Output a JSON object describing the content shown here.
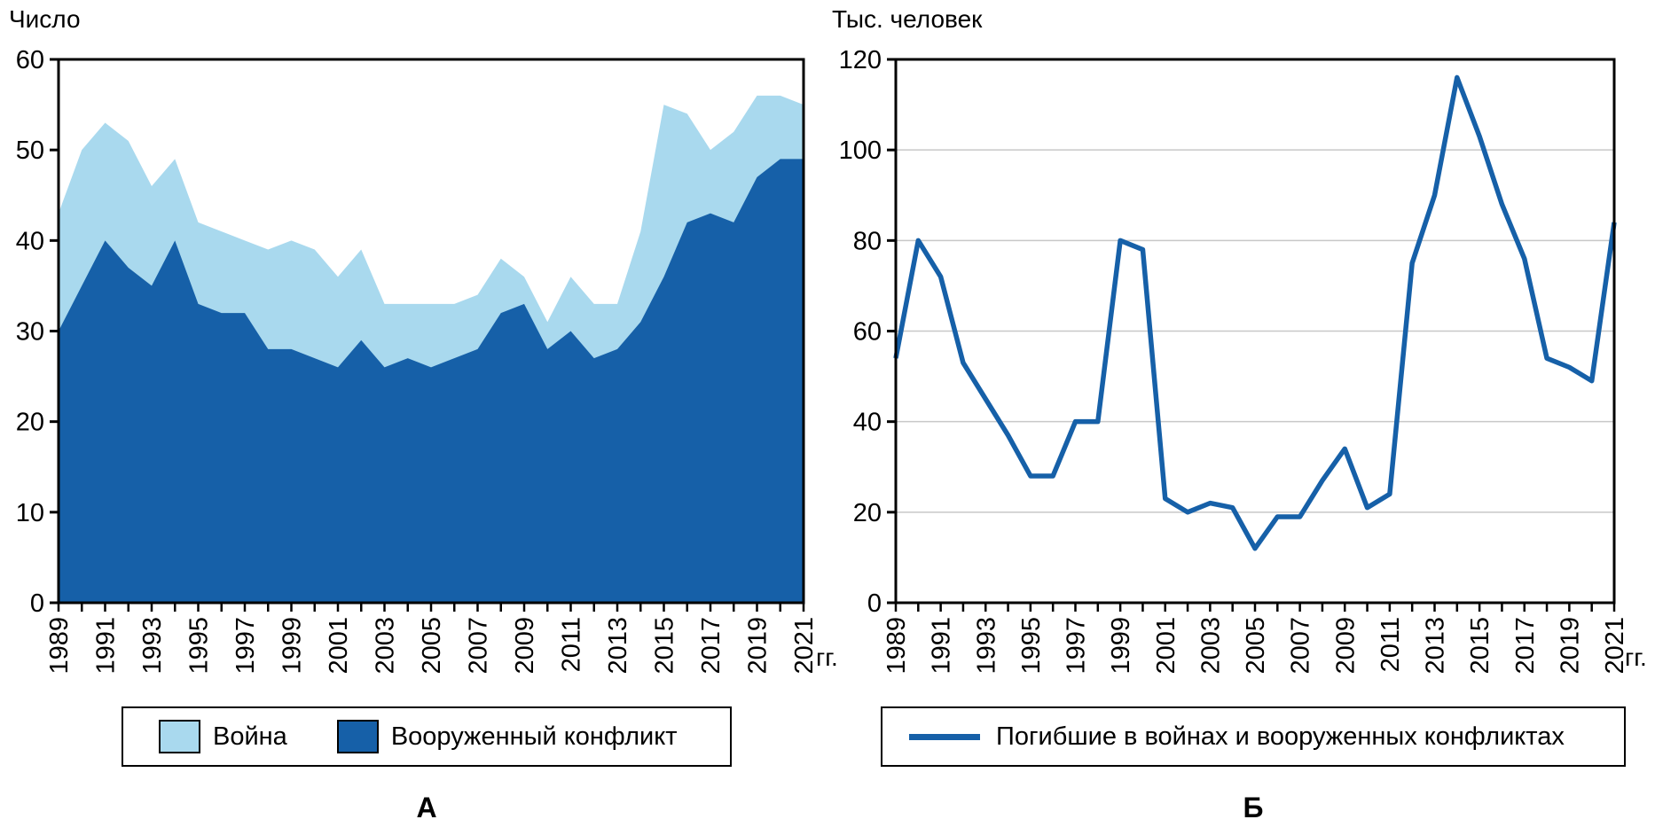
{
  "chart_data": [
    {
      "id": "A",
      "type": "area",
      "stacked": true,
      "title": "Число",
      "caption": "А",
      "x_unit_label": "гг.",
      "x_label_step": 2,
      "ylim": [
        0,
        60
      ],
      "y_ticks": [
        0,
        10,
        20,
        30,
        40,
        50,
        60
      ],
      "grid": false,
      "years": [
        1989,
        1990,
        1991,
        1992,
        1993,
        1994,
        1995,
        1996,
        1997,
        1998,
        1999,
        2000,
        2001,
        2002,
        2003,
        2004,
        2005,
        2006,
        2007,
        2008,
        2009,
        2010,
        2011,
        2012,
        2013,
        2014,
        2015,
        2016,
        2017,
        2018,
        2019,
        2020,
        2021
      ],
      "series": [
        {
          "name": "Война",
          "color": "#a9d9ee",
          "values": [
            13,
            15,
            13,
            14,
            11,
            9,
            9,
            9,
            8,
            11,
            12,
            12,
            10,
            10,
            7,
            6,
            7,
            6,
            6,
            6,
            3,
            3,
            6,
            6,
            5,
            10,
            19,
            12,
            7,
            10,
            9,
            7,
            6
          ]
        },
        {
          "name": "Вооруженный конфликт",
          "color": "#1660a8",
          "values": [
            30,
            35,
            40,
            37,
            35,
            40,
            33,
            32,
            32,
            28,
            28,
            27,
            26,
            29,
            26,
            27,
            26,
            27,
            28,
            32,
            33,
            28,
            30,
            27,
            28,
            31,
            36,
            42,
            43,
            42,
            47,
            49,
            49
          ]
        }
      ],
      "legend_position": "bottom"
    },
    {
      "id": "B",
      "type": "line",
      "title": "Тыс. человек",
      "caption": "Б",
      "x_unit_label": "гг.",
      "x_label_step": 2,
      "ylim": [
        0,
        120
      ],
      "y_ticks": [
        0,
        20,
        40,
        60,
        80,
        100,
        120
      ],
      "grid": true,
      "grid_color": "#c8c8c8",
      "years": [
        1989,
        1990,
        1991,
        1992,
        1993,
        1994,
        1995,
        1996,
        1997,
        1998,
        1999,
        2000,
        2001,
        2002,
        2003,
        2004,
        2005,
        2006,
        2007,
        2008,
        2009,
        2010,
        2011,
        2012,
        2013,
        2014,
        2015,
        2016,
        2017,
        2018,
        2019,
        2020,
        2021
      ],
      "series": [
        {
          "name": "Погибшие в войнах и вооруженных конфликтах",
          "color": "#1660a8",
          "values": [
            54,
            80,
            72,
            53,
            45,
            37,
            28,
            28,
            40,
            40,
            80,
            78,
            23,
            20,
            22,
            21,
            12,
            19,
            19,
            27,
            34,
            21,
            24,
            75,
            90,
            116,
            103,
            88,
            76,
            54,
            52,
            49,
            84
          ]
        }
      ],
      "legend_position": "bottom"
    }
  ]
}
